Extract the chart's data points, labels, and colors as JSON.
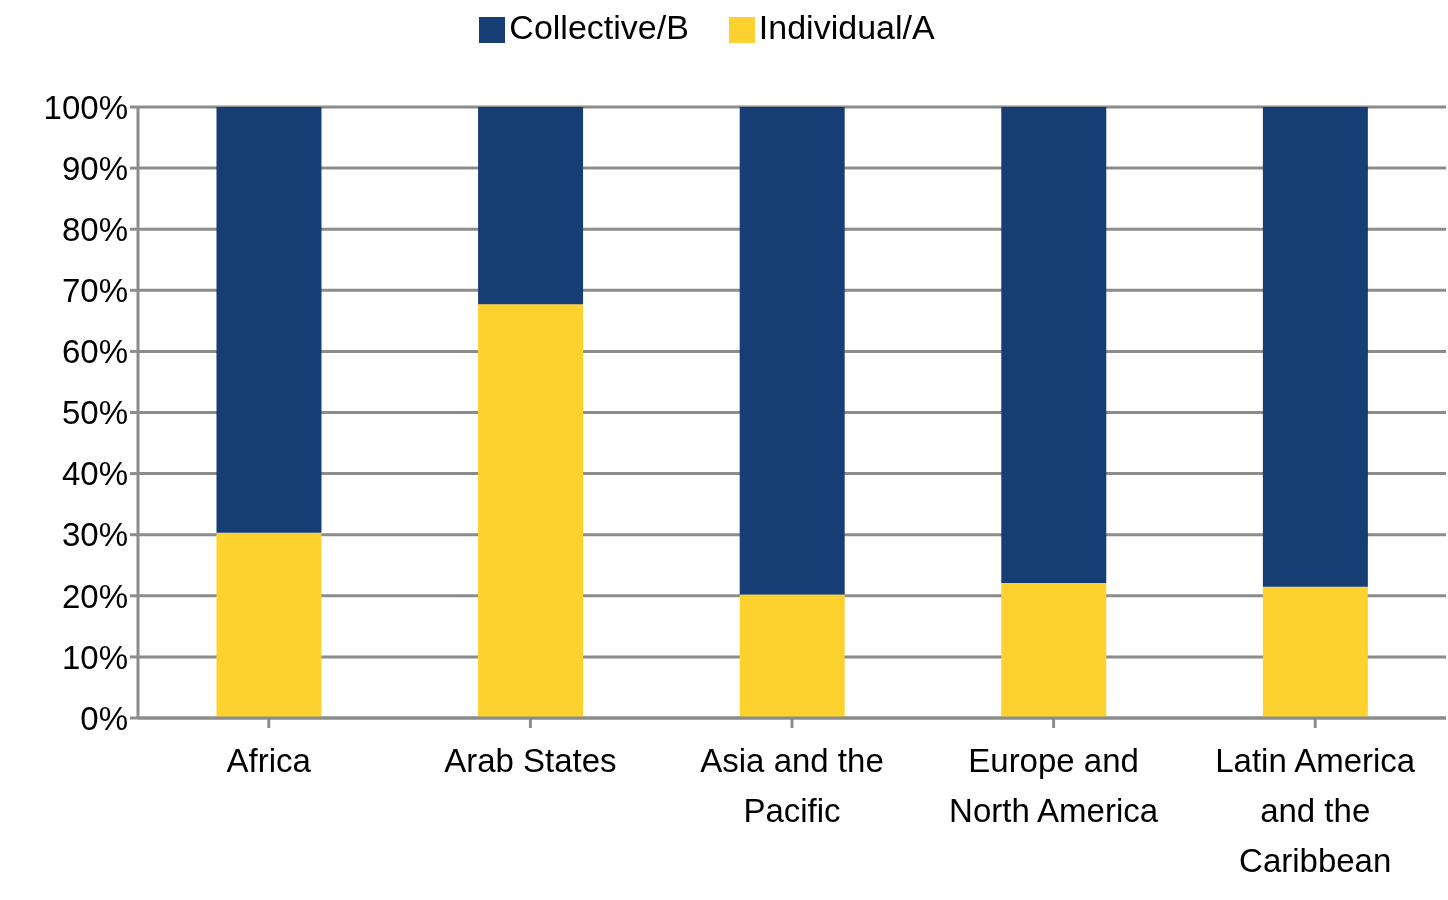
{
  "chart_data": {
    "type": "bar",
    "stacked": true,
    "categories": [
      "Africa",
      "Arab States",
      "Asia and the Pacific",
      "Europe and North America",
      "Latin America and the Caribbean"
    ],
    "series": [
      {
        "name": "Individual/A",
        "color": "#fdd22e",
        "values": [
          30.3,
          67.7,
          20.2,
          22.1,
          21.5
        ]
      },
      {
        "name": "Collective/B",
        "color": "#163e74",
        "values": [
          69.7,
          32.3,
          79.8,
          77.9,
          78.5
        ]
      }
    ],
    "ylim": [
      0,
      100
    ],
    "yticks": [
      {
        "value": 0,
        "label": "0%"
      },
      {
        "value": 10,
        "label": "10%"
      },
      {
        "value": 20,
        "label": "20%"
      },
      {
        "value": 30,
        "label": "30%"
      },
      {
        "value": 40,
        "label": "40%"
      },
      {
        "value": 50,
        "label": "50%"
      },
      {
        "value": 60,
        "label": "60%"
      },
      {
        "value": 70,
        "label": "70%"
      },
      {
        "value": 80,
        "label": "80%"
      },
      {
        "value": 90,
        "label": "90%"
      },
      {
        "value": 100,
        "label": "100%"
      }
    ],
    "grid": "y",
    "legend": "top"
  }
}
